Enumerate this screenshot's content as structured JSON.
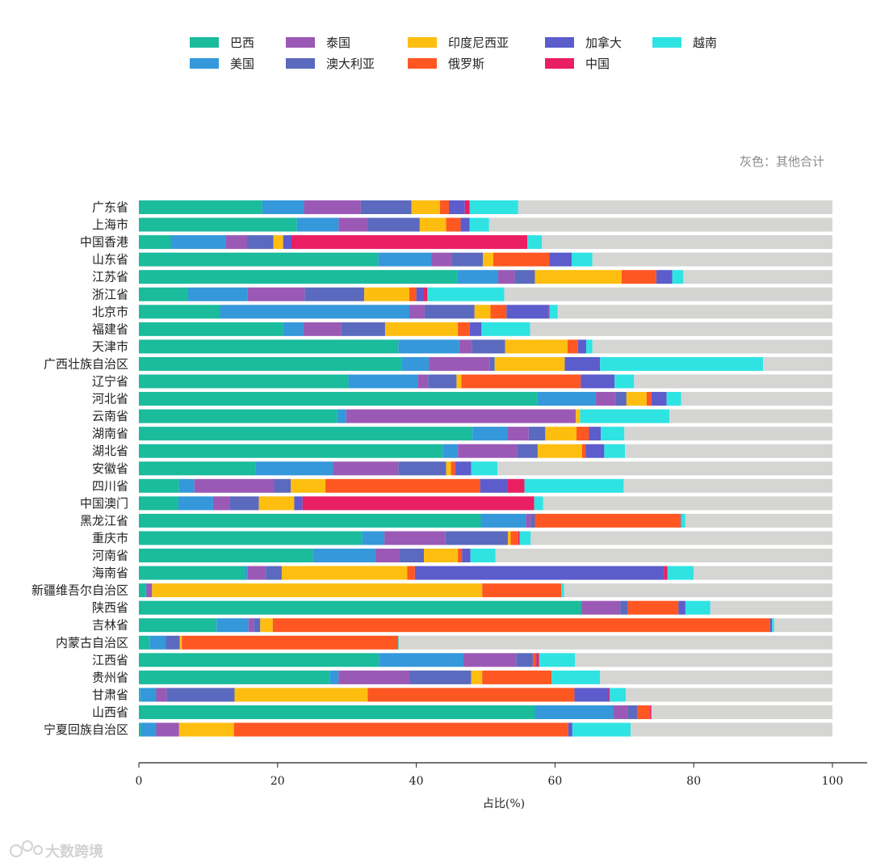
{
  "chart_data": {
    "type": "bar",
    "orientation": "horizontal",
    "stacked": true,
    "unit": "%",
    "xlabel": "占比(%)",
    "xlim": [
      0,
      100
    ],
    "xticks": [
      "0",
      "20",
      "40",
      "60",
      "80",
      "100"
    ],
    "note": "灰色：其他合计",
    "legend_position": "top",
    "grid": false,
    "remainder_color": "#d5d5d3",
    "categories": [
      "广东省",
      "上海市",
      "中国香港",
      "山东省",
      "江苏省",
      "浙江省",
      "北京市",
      "福建省",
      "天津市",
      "广西壮族自治区",
      "辽宁省",
      "河北省",
      "云南省",
      "湖南省",
      "湖北省",
      "安徽省",
      "四川省",
      "中国澳门",
      "黑龙江省",
      "重庆市",
      "河南省",
      "海南省",
      "新疆维吾尔自治区",
      "陕西省",
      "吉林省",
      "内蒙古自治区",
      "江西省",
      "贵州省",
      "甘肃省",
      "山西省",
      "宁夏回族自治区"
    ],
    "series": [
      {
        "name": "巴西",
        "color": "#1abc9c",
        "values": [
          17.8,
          22.8,
          4.6,
          34.5,
          45.9,
          7.1,
          11.7,
          20.8,
          37.4,
          37.9,
          30.2,
          57.5,
          28.6,
          48.1,
          43.8,
          16.8,
          5.8,
          5.7,
          49.3,
          32.2,
          25.1,
          15.3,
          1.0,
          63.8,
          11.2,
          1.6,
          34.6,
          27.5,
          0.2,
          57.1,
          0.3
        ]
      },
      {
        "name": "美国",
        "color": "#3498db",
        "values": [
          6.0,
          6.0,
          7.9,
          7.7,
          5.9,
          8.6,
          27.3,
          2.9,
          8.8,
          3.9,
          10.0,
          8.4,
          1.3,
          5.1,
          2.2,
          11.2,
          2.2,
          5.0,
          6.5,
          3.2,
          9.0,
          0.4,
          0.1,
          0.0,
          4.6,
          2.3,
          12.2,
          1.3,
          2.3,
          11.3,
          2.2
        ]
      },
      {
        "name": "泰国",
        "color": "#9b59b6",
        "values": [
          8.2,
          4.2,
          3.1,
          2.9,
          2.4,
          8.2,
          2.2,
          5.5,
          1.8,
          8.8,
          1.5,
          2.8,
          33.1,
          3.0,
          8.5,
          9.4,
          11.5,
          2.4,
          0.7,
          8.8,
          3.5,
          2.6,
          0.8,
          5.6,
          0.8,
          0.0,
          7.6,
          10.2,
          1.5,
          2.1,
          3.3
        ]
      },
      {
        "name": "澳大利亚",
        "color": "#5b6abf",
        "values": [
          7.3,
          7.5,
          3.8,
          4.5,
          2.9,
          8.6,
          7.2,
          6.3,
          4.8,
          0.7,
          4.1,
          1.6,
          0.0,
          2.4,
          3.0,
          6.9,
          2.4,
          4.2,
          0.6,
          9.0,
          3.5,
          2.3,
          0.0,
          1.1,
          0.9,
          2.0,
          2.4,
          8.9,
          9.8,
          1.4,
          0.0
        ]
      },
      {
        "name": "印度尼西亚",
        "color": "#fdbe10",
        "values": [
          4.1,
          3.8,
          1.4,
          1.5,
          12.5,
          6.5,
          2.3,
          10.5,
          9.0,
          10.1,
          0.7,
          2.9,
          0.6,
          4.5,
          6.4,
          0.7,
          5.0,
          5.1,
          0.0,
          0.4,
          4.9,
          18.1,
          47.6,
          0.0,
          1.8,
          0.3,
          0.0,
          1.6,
          19.2,
          0.0,
          7.9
        ]
      },
      {
        "name": "俄罗斯",
        "color": "#ff5722",
        "values": [
          1.3,
          2.1,
          0.0,
          8.1,
          5.0,
          1.0,
          2.3,
          1.7,
          1.5,
          0.0,
          17.2,
          0.7,
          0.0,
          1.8,
          0.5,
          0.6,
          22.3,
          0.0,
          21.0,
          1.1,
          0.6,
          1.1,
          11.4,
          7.3,
          71.7,
          31.2,
          0.4,
          10.0,
          29.8,
          1.8,
          48.2
        ]
      },
      {
        "name": "加拿大",
        "color": "#5c5ccc",
        "values": [
          2.3,
          1.3,
          1.2,
          3.2,
          2.3,
          1.1,
          6.1,
          1.7,
          1.2,
          5.1,
          4.9,
          2.2,
          0.0,
          1.7,
          2.7,
          2.3,
          3.9,
          1.2,
          0.1,
          0.0,
          1.2,
          35.9,
          0.0,
          1.0,
          0.3,
          0.0,
          0.1,
          0.0,
          4.9,
          0.0,
          0.6
        ]
      },
      {
        "name": "中国",
        "color": "#e91e63",
        "values": [
          0.7,
          0.0,
          34.0,
          0.0,
          0.0,
          0.5,
          0.1,
          0.0,
          0.0,
          0.0,
          0.0,
          0.0,
          0.0,
          0.0,
          0.0,
          0.0,
          2.5,
          33.4,
          0.0,
          0.2,
          0.0,
          0.5,
          0.0,
          0.0,
          0.0,
          0.0,
          0.4,
          0.0,
          0.2,
          0.2,
          0.0
        ]
      },
      {
        "name": "越南",
        "color": "#2fe3e3",
        "values": [
          7.0,
          2.8,
          2.1,
          3.0,
          1.6,
          11.1,
          1.2,
          7.0,
          0.9,
          23.5,
          2.8,
          2.1,
          12.9,
          3.4,
          3.0,
          3.8,
          14.3,
          1.3,
          0.6,
          1.6,
          3.6,
          3.8,
          0.4,
          3.6,
          0.3,
          0.1,
          5.2,
          7.0,
          2.3,
          0.0,
          8.4
        ]
      }
    ]
  }
}
